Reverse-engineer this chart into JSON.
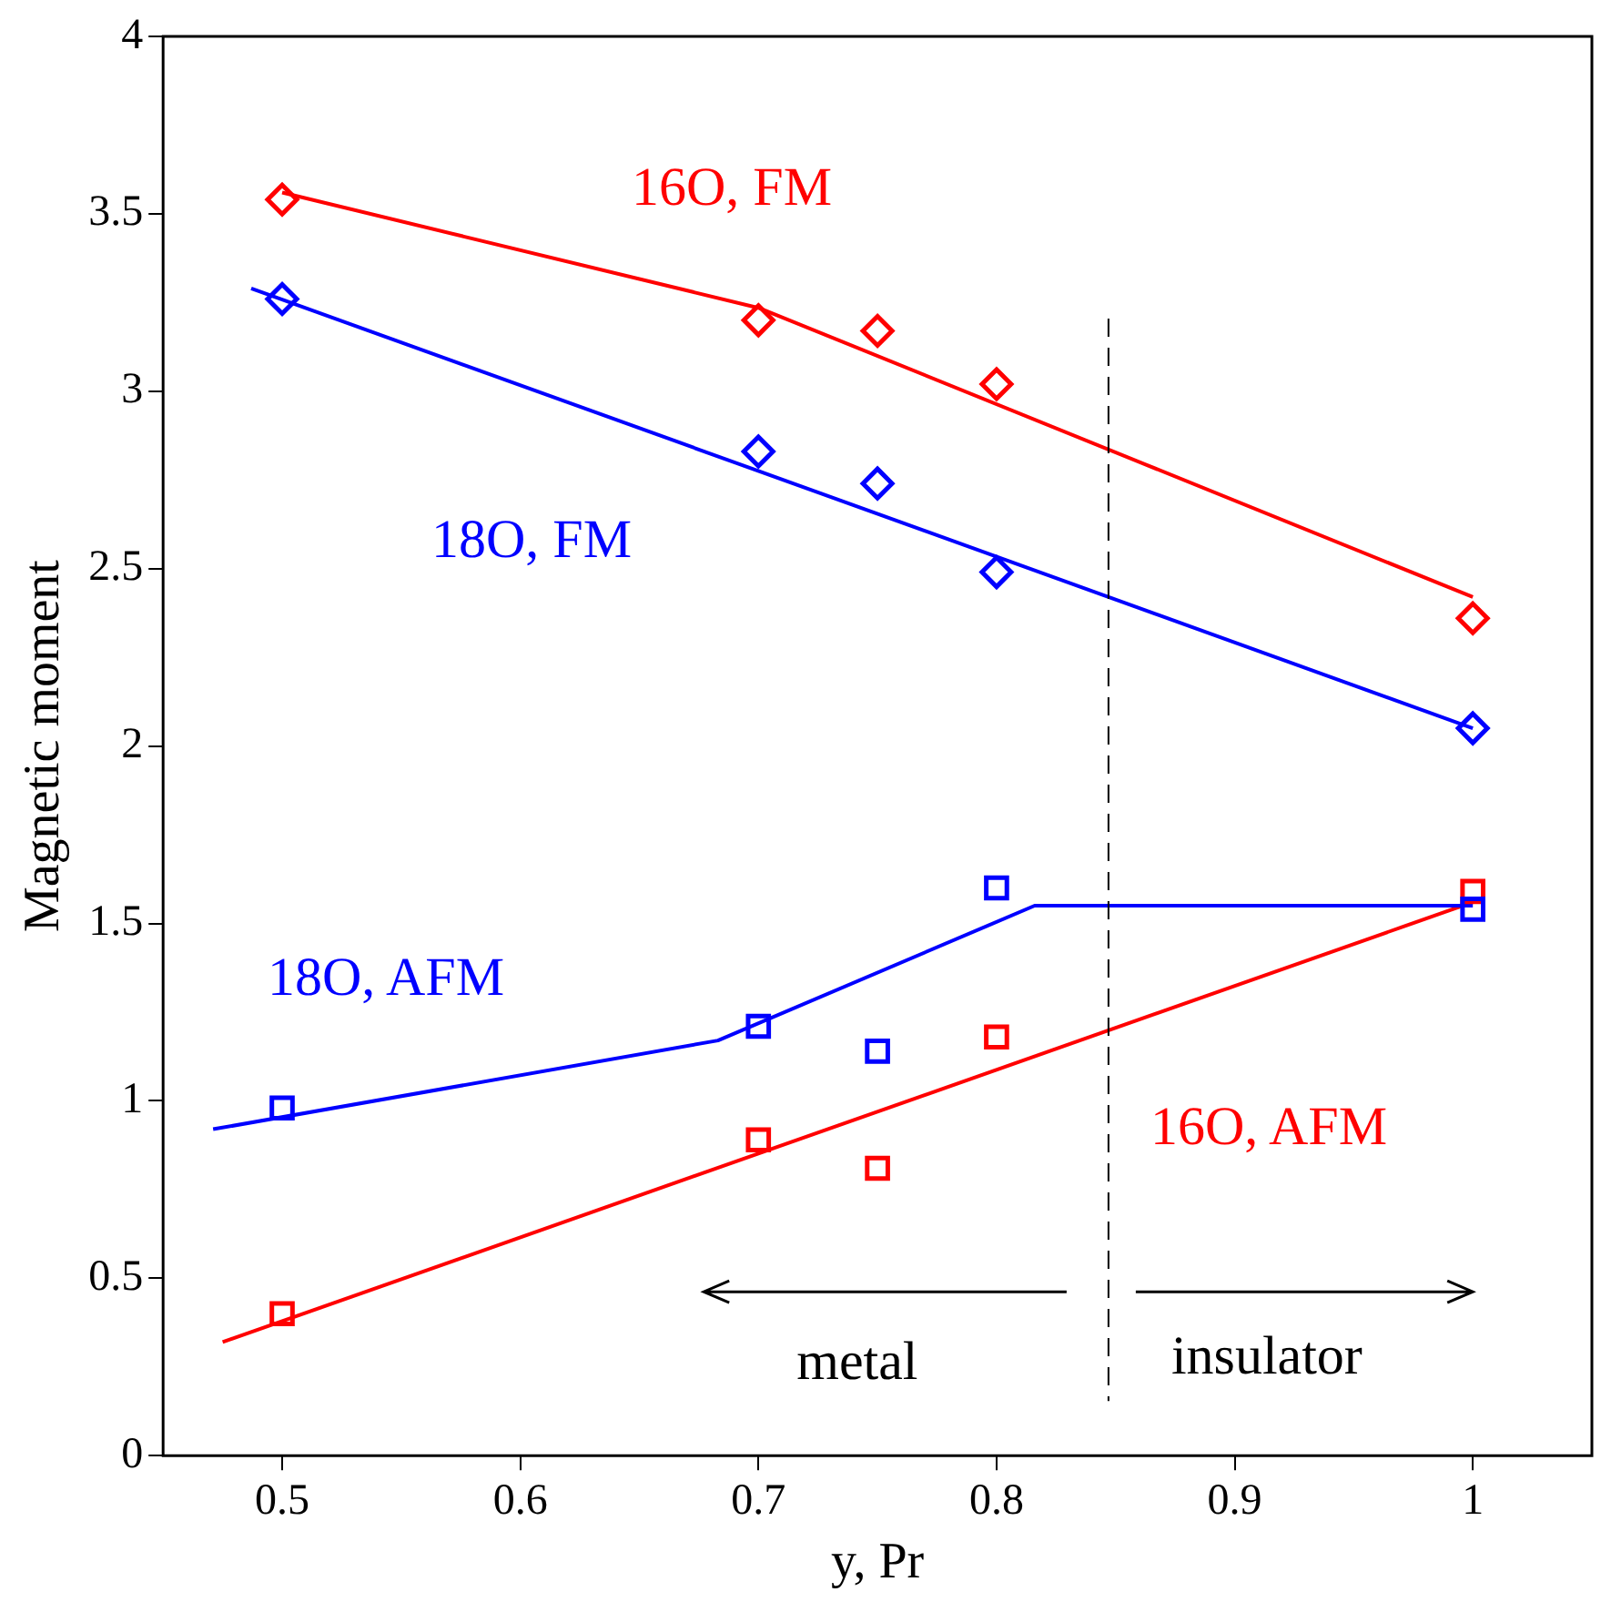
{
  "chart_data": {
    "type": "scatter",
    "xlabel": "y, Pr",
    "ylabel": "Magnetic moment",
    "xlim": [
      0.45,
      1.05
    ],
    "xticks": [
      0.5,
      0.6,
      0.7,
      0.8,
      0.9,
      1
    ],
    "ylim": [
      0,
      4
    ],
    "yticks": [
      0,
      0.5,
      1,
      1.5,
      2,
      2.5,
      3,
      3.5,
      4
    ],
    "grid": false,
    "legend": false,
    "series": [
      {
        "type": "scatter",
        "name": "16O, FM",
        "marker": "diamond",
        "color": "#ff0000",
        "x": [
          0.5,
          0.7,
          0.75,
          0.8,
          1
        ],
        "values": [
          3.54,
          3.2,
          3.17,
          3.02,
          2.36
        ]
      },
      {
        "type": "scatter",
        "name": "18O, FM",
        "marker": "diamond",
        "color": "#0000ff",
        "x": [
          0.5,
          0.7,
          0.75,
          0.8,
          1
        ],
        "values": [
          3.26,
          2.83,
          2.74,
          2.49,
          2.05
        ]
      },
      {
        "type": "scatter",
        "name": "18O, AFM",
        "marker": "square",
        "color": "#0000ff",
        "x": [
          0.5,
          0.7,
          0.75,
          0.8,
          1
        ],
        "values": [
          0.98,
          1.21,
          1.14,
          1.6,
          1.54
        ]
      },
      {
        "type": "scatter",
        "name": "16O, AFM",
        "marker": "square",
        "color": "#ff0000",
        "x": [
          0.5,
          0.7,
          0.75,
          0.8,
          1
        ],
        "values": [
          0.4,
          0.89,
          0.81,
          1.18,
          1.59
        ]
      },
      {
        "type": "line",
        "marker": "none",
        "color": "#ff0000",
        "x": [
          0.5,
          0.7,
          1
        ],
        "values": [
          3.56,
          3.235,
          2.42
        ]
      },
      {
        "type": "line",
        "marker": "none",
        "color": "#0000ff",
        "x": [
          0.487,
          1
        ],
        "values": [
          3.29,
          2.05
        ]
      },
      {
        "type": "line",
        "marker": "none",
        "color": "#0000ff",
        "x": [
          0.471,
          0.683,
          0.816,
          1
        ],
        "values": [
          0.92,
          1.17,
          1.55,
          1.55
        ]
      },
      {
        "type": "line",
        "marker": "none",
        "color": "#ff0000",
        "x": [
          0.475,
          1
        ],
        "values": [
          0.32,
          1.56
        ]
      }
    ],
    "ref_lines": [
      {
        "axis": "x",
        "value": 0.847,
        "line_style": "dashed",
        "color": "#000000"
      }
    ],
    "annotations": [
      "metal",
      "insulator"
    ]
  }
}
